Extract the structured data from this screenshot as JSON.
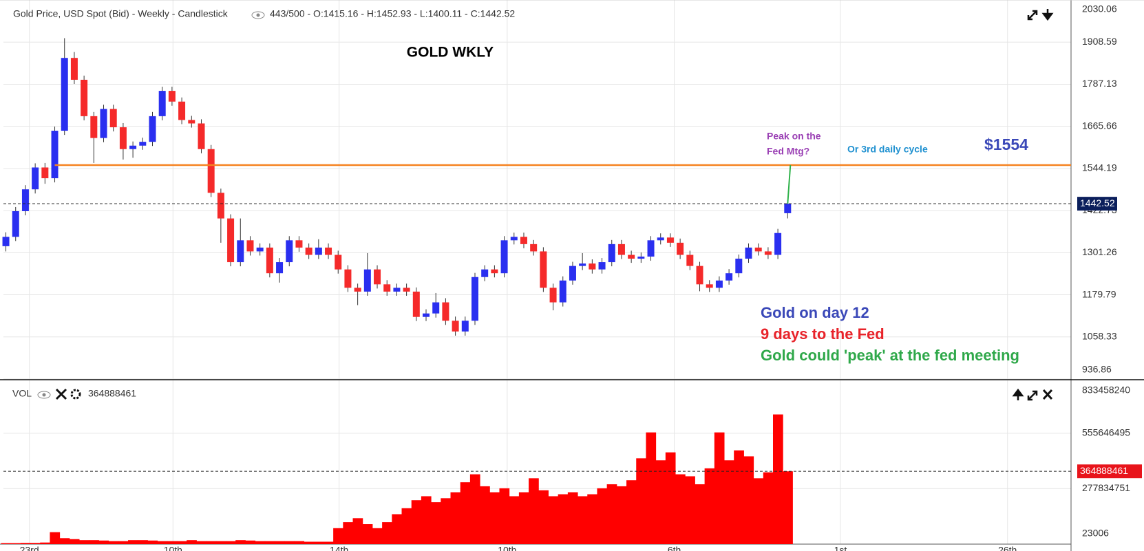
{
  "chart_data": [
    {
      "type": "candlestick",
      "title": "Gold Price, USD Spot (Bid) - Weekly - Candlestick",
      "subtitle": "443/500 - O:1415.16 - H:1452.93 - L:1400.11 - C:1442.52",
      "heading": "GOLD WKLY",
      "annotations": [
        "Peak on the",
        "Fed Mtg?",
        "Or 3rd daily cycle"
      ],
      "notes": [
        "Gold on day 12",
        "9 days to the Fed",
        "Gold could 'peak' at the fed meeting"
      ],
      "level": {
        "value": 1554,
        "label": "$1554"
      },
      "up_color": "#2a2ff0",
      "down_color": "#f52a2a",
      "level_color": "#f58220",
      "projection_color": "#2fb24a",
      "x": [
        0,
        1,
        2,
        3,
        4,
        5,
        6,
        7,
        8,
        9,
        10,
        11,
        12,
        13,
        14,
        15,
        16,
        17,
        18,
        19,
        20,
        21,
        22,
        23,
        24,
        25,
        26,
        27,
        28,
        29,
        30,
        31,
        32,
        33,
        34,
        35,
        36,
        37,
        38,
        39,
        40,
        41,
        42,
        43,
        44,
        45,
        46,
        47,
        48,
        49,
        50,
        51,
        52,
        53,
        54,
        55,
        56,
        57,
        58,
        59,
        60,
        61,
        62,
        63,
        64,
        65,
        66,
        67,
        68,
        69,
        70,
        71,
        72,
        73,
        74,
        75,
        76,
        77,
        78,
        79,
        80
      ],
      "open": [
        1320,
        1347,
        1421,
        1484,
        1547,
        1516,
        1653,
        1863,
        1800,
        1695,
        1632,
        1716,
        1663,
        1600,
        1610,
        1621,
        1695,
        1768,
        1737,
        1684,
        1674,
        1600,
        1474,
        1400,
        1274,
        1337,
        1305,
        1316,
        1242,
        1274,
        1337,
        1316,
        1295,
        1316,
        1295,
        1253,
        1200,
        1189,
        1253,
        1210,
        1189,
        1200,
        1189,
        1116,
        1126,
        1158,
        1105,
        1074,
        1105,
        1231,
        1253,
        1242,
        1337,
        1347,
        1326,
        1305,
        1200,
        1158,
        1221,
        1263,
        1270,
        1253,
        1274,
        1326,
        1295,
        1284,
        1290,
        1337,
        1345,
        1330,
        1295,
        1263,
        1210,
        1200,
        1221,
        1242,
        1284,
        1316,
        1305,
        1295,
        1415.16
      ],
      "high": [
        1360,
        1433,
        1496,
        1559,
        1560,
        1665,
        1920,
        1880,
        1812,
        1707,
        1728,
        1728,
        1675,
        1622,
        1633,
        1707,
        1780,
        1780,
        1749,
        1696,
        1686,
        1612,
        1486,
        1412,
        1400,
        1349,
        1328,
        1328,
        1286,
        1349,
        1349,
        1328,
        1340,
        1328,
        1307,
        1265,
        1212,
        1300,
        1265,
        1222,
        1212,
        1212,
        1201,
        1138,
        1185,
        1170,
        1117,
        1117,
        1243,
        1265,
        1265,
        1349,
        1359,
        1359,
        1338,
        1317,
        1212,
        1233,
        1275,
        1300,
        1282,
        1286,
        1338,
        1338,
        1307,
        1302,
        1349,
        1357,
        1357,
        1342,
        1307,
        1275,
        1222,
        1233,
        1254,
        1296,
        1328,
        1328,
        1317,
        1370,
        1452.93
      ],
      "low": [
        1305,
        1335,
        1409,
        1472,
        1500,
        1504,
        1641,
        1788,
        1683,
        1560,
        1620,
        1651,
        1570,
        1575,
        1598,
        1609,
        1683,
        1725,
        1672,
        1662,
        1588,
        1462,
        1330,
        1262,
        1262,
        1293,
        1293,
        1230,
        1215,
        1262,
        1304,
        1283,
        1283,
        1283,
        1241,
        1188,
        1150,
        1177,
        1198,
        1177,
        1177,
        1177,
        1104,
        1104,
        1114,
        1093,
        1062,
        1062,
        1093,
        1219,
        1230,
        1230,
        1325,
        1314,
        1293,
        1188,
        1135,
        1146,
        1209,
        1251,
        1241,
        1241,
        1262,
        1283,
        1272,
        1272,
        1278,
        1325,
        1318,
        1283,
        1251,
        1190,
        1188,
        1188,
        1209,
        1230,
        1272,
        1293,
        1283,
        1283,
        1400.11
      ],
      "close": [
        1347,
        1421,
        1484,
        1547,
        1516,
        1653,
        1863,
        1800,
        1695,
        1632,
        1716,
        1663,
        1600,
        1610,
        1621,
        1695,
        1768,
        1737,
        1684,
        1674,
        1600,
        1474,
        1400,
        1274,
        1337,
        1305,
        1316,
        1242,
        1274,
        1337,
        1316,
        1295,
        1316,
        1295,
        1253,
        1200,
        1189,
        1253,
        1210,
        1189,
        1200,
        1189,
        1116,
        1126,
        1158,
        1105,
        1074,
        1105,
        1231,
        1253,
        1242,
        1337,
        1347,
        1326,
        1305,
        1200,
        1158,
        1221,
        1263,
        1270,
        1253,
        1274,
        1326,
        1295,
        1284,
        1290,
        1337,
        1345,
        1330,
        1295,
        1263,
        1210,
        1200,
        1221,
        1242,
        1284,
        1316,
        1305,
        1295,
        1358,
        1442.52
      ],
      "xlim": [
        -0.25,
        109
      ],
      "ylim": [
        936.86,
        2030.06
      ],
      "yticks": [
        936.86,
        1058.33,
        1179.79,
        1301.26,
        1422.73,
        1544.19,
        1665.66,
        1787.13,
        1908.59,
        2030.06
      ],
      "grid": true
    },
    {
      "type": "bar",
      "title": "VOL",
      "color": "#ff0000",
      "values": [
        5000000,
        5000000,
        6000000,
        6000000,
        8000000,
        60000000,
        30000000,
        25000000,
        20000000,
        20000000,
        18000000,
        15000000,
        15000000,
        20000000,
        20000000,
        18000000,
        15000000,
        15000000,
        15000000,
        20000000,
        15000000,
        15000000,
        15000000,
        15000000,
        20000000,
        18000000,
        15000000,
        15000000,
        15000000,
        15000000,
        15000000,
        12000000,
        12000000,
        12000000,
        80000000,
        110000000,
        130000000,
        100000000,
        80000000,
        110000000,
        150000000,
        180000000,
        220000000,
        240000000,
        210000000,
        230000000,
        260000000,
        310000000,
        350000000,
        290000000,
        260000000,
        280000000,
        240000000,
        260000000,
        330000000,
        270000000,
        240000000,
        250000000,
        260000000,
        240000000,
        250000000,
        280000000,
        300000000,
        290000000,
        320000000,
        430000000,
        560000000,
        420000000,
        460000000,
        350000000,
        340000000,
        300000000,
        380000000,
        560000000,
        420000000,
        470000000,
        440000000,
        330000000,
        360000000,
        650000000,
        364888461
      ],
      "xlim": [
        -0.25,
        109
      ],
      "xticks": [
        {
          "value": 2.4,
          "label": "23rd"
        },
        {
          "value": 17.1,
          "label": "10th"
        },
        {
          "value": 34.1,
          "label": "14th"
        },
        {
          "value": 51.3,
          "label": "10th"
        },
        {
          "value": 68.4,
          "label": "6th"
        },
        {
          "value": 85.4,
          "label": "1st"
        },
        {
          "value": 102.5,
          "label": "26th"
        }
      ],
      "ylim": [
        0,
        820700000
      ],
      "yticks": [
        23006,
        277834751,
        555646495,
        833458240
      ],
      "grid": true
    }
  ]
}
